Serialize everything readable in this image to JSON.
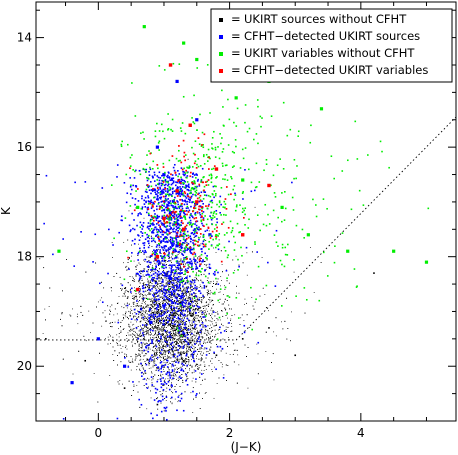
{
  "chart_data": {
    "type": "scatter",
    "xlabel": "(J−K)",
    "ylabel": "K",
    "xlim": [
      -0.95,
      5.45
    ],
    "ylim": [
      21.0,
      13.35
    ],
    "y_inverted": true,
    "x_ticks": [
      "0",
      "2",
      "4"
    ],
    "y_ticks": [
      "14",
      "16",
      "18",
      "20"
    ],
    "grid": false,
    "legend_position": "top-right",
    "legend_label": "=",
    "series": [
      {
        "name": "UKIRT sources without CFHT",
        "color": "#000000",
        "count": 6200,
        "points": [
          [
            -0.8,
            19.5
          ],
          [
            -0.2,
            19.9
          ],
          [
            0.4,
            20.4
          ],
          [
            0.8,
            19.2
          ],
          [
            1.0,
            18.8
          ],
          [
            1.1,
            19.6
          ],
          [
            1.2,
            18.4
          ],
          [
            1.3,
            19.9
          ],
          [
            1.5,
            19.4
          ],
          [
            1.8,
            19.8
          ],
          [
            2.2,
            19.5
          ],
          [
            2.6,
            19.3
          ],
          [
            3.0,
            19.8
          ],
          [
            0.9,
            20.7
          ],
          [
            4.2,
            18.3
          ]
        ]
      },
      {
        "name": "CFHT−detected UKIRT sources",
        "color": "#0000ff",
        "count": 1500,
        "points": [
          [
            0.9,
            16.0
          ],
          [
            1.0,
            16.5
          ],
          [
            1.1,
            17.2
          ],
          [
            1.2,
            17.8
          ],
          [
            1.1,
            18.4
          ],
          [
            1.0,
            18.9
          ],
          [
            0.8,
            19.2
          ],
          [
            1.2,
            14.8
          ],
          [
            1.5,
            15.5
          ],
          [
            0.0,
            19.5
          ],
          [
            -0.4,
            20.3
          ],
          [
            0.4,
            20.0
          ],
          [
            1.7,
            17.6
          ]
        ]
      },
      {
        "name": "UKIRT variables without CFHT",
        "color": "#00ee00",
        "count": 620,
        "points": [
          [
            0.7,
            13.8
          ],
          [
            1.3,
            14.1
          ],
          [
            1.5,
            14.4
          ],
          [
            2.1,
            15.1
          ],
          [
            2.6,
            14.8
          ],
          [
            3.4,
            15.3
          ],
          [
            2.2,
            16.6
          ],
          [
            2.8,
            17.1
          ],
          [
            3.2,
            17.6
          ],
          [
            3.8,
            17.9
          ],
          [
            4.5,
            17.9
          ],
          [
            5.0,
            18.1
          ],
          [
            -0.6,
            17.9
          ],
          [
            0.6,
            17.1
          ],
          [
            1.2,
            16.8
          ]
        ]
      },
      {
        "name": "CFHT−detected UKIRT variables",
        "color": "#ff0000",
        "count": 170,
        "points": [
          [
            1.1,
            14.5
          ],
          [
            1.4,
            15.6
          ],
          [
            1.2,
            16.8
          ],
          [
            1.5,
            17.0
          ],
          [
            1.8,
            16.4
          ],
          [
            2.2,
            17.6
          ],
          [
            1.0,
            17.3
          ],
          [
            0.9,
            18.0
          ],
          [
            2.6,
            16.7
          ],
          [
            0.6,
            18.6
          ],
          [
            1.3,
            17.5
          ]
        ]
      }
    ],
    "reference_lines": [
      {
        "style": "dotted",
        "points": [
          [
            -0.95,
            19.52
          ],
          [
            2.1,
            19.52
          ],
          [
            5.45,
            15.45
          ]
        ]
      }
    ]
  }
}
